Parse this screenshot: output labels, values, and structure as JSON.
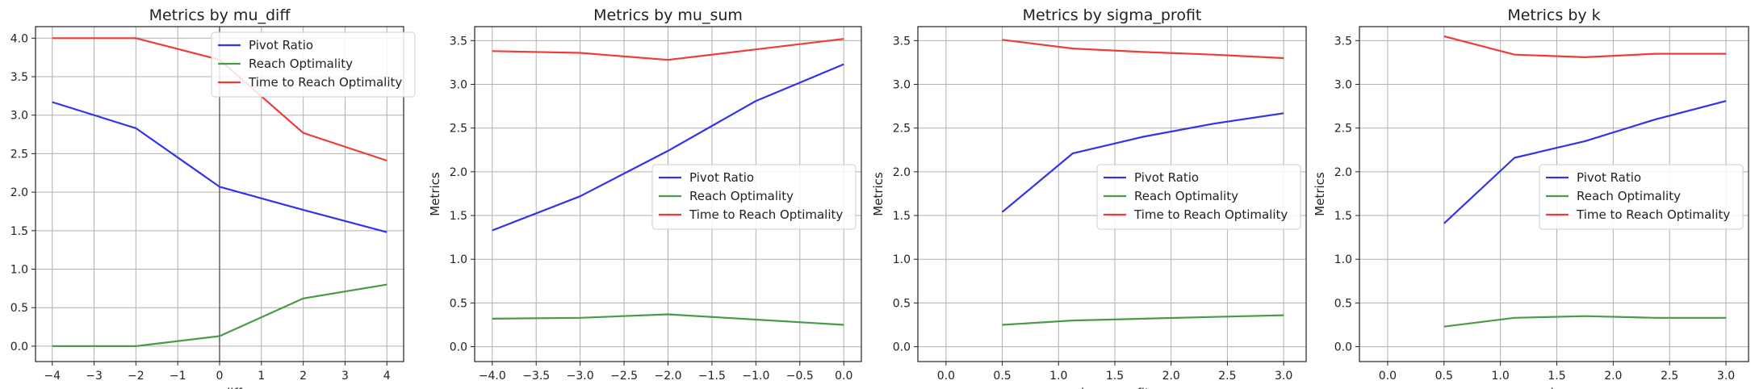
{
  "chart_data": [
    {
      "type": "line",
      "title": "Metrics by mu_diff",
      "xlabel": "mu_diff",
      "ylabel": "Metrics",
      "x": [
        -4,
        -2,
        0,
        2,
        4
      ],
      "xlim": [
        -4.4,
        4.4
      ],
      "ylim": [
        -0.2,
        4.15
      ],
      "xticks": [
        -4,
        -3,
        -2,
        -1,
        0,
        1,
        2,
        3,
        4
      ],
      "xtick_labels": [
        "−4",
        "−3",
        "−2",
        "−1",
        "0",
        "1",
        "2",
        "3",
        "4"
      ],
      "yticks": [
        0.0,
        0.5,
        1.0,
        1.5,
        2.0,
        2.5,
        3.0,
        3.5,
        4.0
      ],
      "ytick_labels": [
        "0.0",
        "0.5",
        "1.0",
        "1.5",
        "2.0",
        "2.5",
        "3.0",
        "3.5",
        "4.0"
      ],
      "grid": true,
      "zero_line": true,
      "legend": "upper-right",
      "series": [
        {
          "name": "Pivot Ratio",
          "color": "#3333ee",
          "values": [
            3.17,
            2.83,
            2.07,
            1.77,
            1.48
          ]
        },
        {
          "name": "Reach Optimality",
          "color": "#4a9a4a",
          "values": [
            0.0,
            0.0,
            0.13,
            0.62,
            0.8
          ]
        },
        {
          "name": "Time to Reach Optimality",
          "color": "#ee3b3b",
          "values": [
            4.0,
            4.0,
            3.72,
            2.77,
            2.41
          ]
        }
      ]
    },
    {
      "type": "line",
      "title": "Metrics by mu_sum",
      "xlabel": "mu_sum",
      "ylabel": "Metrics",
      "x": [
        -4,
        -3,
        -2,
        -1,
        0
      ],
      "xlim": [
        -4.2,
        0.2
      ],
      "ylim": [
        -0.17,
        3.66
      ],
      "xticks": [
        -4.0,
        -3.5,
        -3.0,
        -2.5,
        -2.0,
        -1.5,
        -1.0,
        -0.5,
        0.0
      ],
      "xtick_labels": [
        "−4.0",
        "−3.5",
        "−3.0",
        "−2.5",
        "−2.0",
        "−1.5",
        "−1.0",
        "−0.5",
        "0.0"
      ],
      "yticks": [
        0.0,
        0.5,
        1.0,
        1.5,
        2.0,
        2.5,
        3.0,
        3.5
      ],
      "ytick_labels": [
        "0.0",
        "0.5",
        "1.0",
        "1.5",
        "2.0",
        "2.5",
        "3.0",
        "3.5"
      ],
      "grid": true,
      "zero_line": false,
      "legend": "center-right",
      "series": [
        {
          "name": "Pivot Ratio",
          "color": "#3333ee",
          "values": [
            1.33,
            1.72,
            2.24,
            2.81,
            3.23
          ]
        },
        {
          "name": "Reach Optimality",
          "color": "#4a9a4a",
          "values": [
            0.32,
            0.33,
            0.37,
            0.31,
            0.25
          ]
        },
        {
          "name": "Time to Reach Optimality",
          "color": "#ee3b3b",
          "values": [
            3.38,
            3.36,
            3.28,
            3.4,
            3.52
          ]
        }
      ]
    },
    {
      "type": "line",
      "title": "Metrics by sigma_profit",
      "xlabel": "sigma_profit",
      "ylabel": "Metrics",
      "x": [
        0.5,
        1.125,
        1.75,
        2.375,
        3.0
      ],
      "xlim": [
        -0.25,
        3.2
      ],
      "ylim": [
        -0.17,
        3.66
      ],
      "xticks": [
        0.0,
        0.5,
        1.0,
        1.5,
        2.0,
        2.5,
        3.0
      ],
      "xtick_labels": [
        "0.0",
        "0.5",
        "1.0",
        "1.5",
        "2.0",
        "2.5",
        "3.0"
      ],
      "yticks": [
        0.0,
        0.5,
        1.0,
        1.5,
        2.0,
        2.5,
        3.0,
        3.5
      ],
      "ytick_labels": [
        "0.0",
        "0.5",
        "1.0",
        "1.5",
        "2.0",
        "2.5",
        "3.0",
        "3.5"
      ],
      "grid": true,
      "zero_line": false,
      "legend": "center-right",
      "series": [
        {
          "name": "Pivot Ratio",
          "color": "#3333ee",
          "values": [
            1.54,
            2.21,
            2.4,
            2.55,
            2.67
          ]
        },
        {
          "name": "Reach Optimality",
          "color": "#4a9a4a",
          "values": [
            0.25,
            0.3,
            0.32,
            0.34,
            0.36
          ]
        },
        {
          "name": "Time to Reach Optimality",
          "color": "#ee3b3b",
          "values": [
            3.51,
            3.41,
            3.37,
            3.34,
            3.3
          ]
        }
      ]
    },
    {
      "type": "line",
      "title": "Metrics by k",
      "xlabel": "k",
      "ylabel": "Metrics",
      "x": [
        0.5,
        1.125,
        1.75,
        2.375,
        3.0
      ],
      "xlim": [
        -0.25,
        3.2
      ],
      "ylim": [
        -0.17,
        3.66
      ],
      "xticks": [
        0.0,
        0.5,
        1.0,
        1.5,
        2.0,
        2.5,
        3.0
      ],
      "xtick_labels": [
        "0.0",
        "0.5",
        "1.0",
        "1.5",
        "2.0",
        "2.5",
        "3.0"
      ],
      "yticks": [
        0.0,
        0.5,
        1.0,
        1.5,
        2.0,
        2.5,
        3.0,
        3.5
      ],
      "ytick_labels": [
        "0.0",
        "0.5",
        "1.0",
        "1.5",
        "2.0",
        "2.5",
        "3.0",
        "3.5"
      ],
      "grid": true,
      "zero_line": false,
      "legend": "center-right",
      "series": [
        {
          "name": "Pivot Ratio",
          "color": "#3333ee",
          "values": [
            1.41,
            2.16,
            2.35,
            2.6,
            2.81
          ]
        },
        {
          "name": "Reach Optimality",
          "color": "#4a9a4a",
          "values": [
            0.23,
            0.33,
            0.35,
            0.33,
            0.33
          ]
        },
        {
          "name": "Time to Reach Optimality",
          "color": "#ee3b3b",
          "values": [
            3.55,
            3.34,
            3.31,
            3.35,
            3.35
          ]
        }
      ]
    }
  ]
}
